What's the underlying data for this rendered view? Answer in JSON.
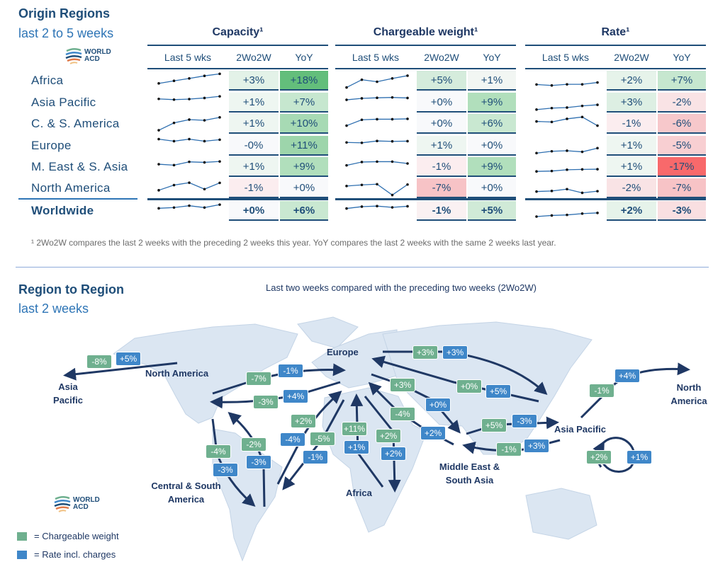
{
  "origin": {
    "title": "Origin Regions",
    "subtitle": "last 2 to 5 weeks",
    "logo_text": [
      "WORLD",
      "ACD"
    ],
    "regions": [
      "Africa",
      "Asia Pacific",
      "C. & S. America",
      "Europe",
      "M. East & S. Asia",
      "North America"
    ],
    "total_label": "Worldwide",
    "footnote": "¹ 2Wo2W compares the last 2 weeks with the preceding 2 weeks this year. YoY compares the last 2 weeks with the same 2 weeks last year."
  },
  "chart_data": {
    "type": "table",
    "columns": [
      "Last 5 wks",
      "2Wo2W",
      "YoY"
    ],
    "groups": [
      {
        "title": "Capacity¹",
        "sparklines": [
          [
            0.39,
            0.53,
            0.66,
            0.8,
            0.91
          ],
          [
            0.74,
            0.7,
            0.73,
            0.79,
            0.88
          ],
          [
            0.19,
            0.59,
            0.77,
            0.73,
            0.89
          ],
          [
            0.9,
            0.79,
            0.9,
            0.79,
            0.87
          ],
          [
            0.69,
            0.64,
            0.82,
            0.79,
            0.84
          ],
          [
            0.43,
            0.71,
            0.84,
            0.49,
            0.83
          ],
          [
            0.68,
            0.72,
            0.82,
            0.72,
            0.88
          ]
        ],
        "wo2w": [
          "+3%",
          "+1%",
          "+1%",
          "-0%",
          "+1%",
          "-1%",
          "+0%"
        ],
        "wo2w_colors": [
          "#e3f2e8",
          "#eef6f1",
          "#eef6f1",
          "#f8f9fb",
          "#eef6f1",
          "#fbedef",
          "#f8f9fb"
        ],
        "yoy": [
          "+18%",
          "+7%",
          "+10%",
          "+11%",
          "+9%",
          "+0%",
          "+6%"
        ],
        "yoy_colors": [
          "#63be7b",
          "#c6e7cf",
          "#a7dab4",
          "#9dd5ab",
          "#b1dfbc",
          "#f8f9fb",
          "#c9e8d1"
        ]
      },
      {
        "title": "Chargeable weight¹",
        "sparklines": [
          [
            0.17,
            0.59,
            0.48,
            0.66,
            0.81
          ],
          [
            0.69,
            0.77,
            0.8,
            0.82,
            0.79
          ],
          [
            0.44,
            0.76,
            0.79,
            0.79,
            0.81
          ],
          [
            0.72,
            0.7,
            0.8,
            0.78,
            0.79
          ],
          [
            0.63,
            0.81,
            0.83,
            0.83,
            0.73
          ],
          [
            0.66,
            0.72,
            0.76,
            0.17,
            0.74
          ],
          [
            0.67,
            0.77,
            0.8,
            0.73,
            0.79
          ]
        ],
        "wo2w": [
          "+5%",
          "+0%",
          "+0%",
          "+1%",
          "-1%",
          "-7%",
          "-1%"
        ],
        "wo2w_colors": [
          "#d5ecdc",
          "#f8f9fb",
          "#f8f9fb",
          "#eef6f1",
          "#fbedef",
          "#f7c3c6",
          "#faf1f2"
        ],
        "yoy": [
          "+1%",
          "+9%",
          "+6%",
          "+0%",
          "+9%",
          "+0%",
          "+5%"
        ],
        "yoy_colors": [
          "#f2f6f3",
          "#b1dfbc",
          "#c9e8d1",
          "#f8f9fb",
          "#b1dfbc",
          "#f8f9fb",
          "#d0ead7"
        ]
      },
      {
        "title": "Rate¹",
        "sparklines": [
          [
            0.33,
            0.28,
            0.34,
            0.34,
            0.44
          ],
          [
            0.16,
            0.24,
            0.27,
            0.36,
            0.42
          ],
          [
            0.67,
            0.64,
            0.81,
            0.91,
            0.44
          ],
          [
            0.14,
            0.24,
            0.27,
            0.21,
            0.41
          ],
          [
            0.3,
            0.32,
            0.39,
            0.41,
            0.42
          ],
          [
            0.36,
            0.39,
            0.49,
            0.29,
            0.38
          ],
          [
            0.23,
            0.29,
            0.32,
            0.39,
            0.43
          ]
        ],
        "wo2w": [
          "+2%",
          "+3%",
          "-1%",
          "+1%",
          "+1%",
          "-2%",
          "+2%"
        ],
        "wo2w_colors": [
          "#e6f3ea",
          "#ddefe3",
          "#fbedef",
          "#eef6f1",
          "#eef6f1",
          "#f9e3e5",
          "#e6f3ea"
        ],
        "yoy": [
          "+7%",
          "-2%",
          "-6%",
          "-5%",
          "-17%",
          "-7%",
          "-3%"
        ],
        "yoy_colors": [
          "#c6e7cf",
          "#f9e3e5",
          "#f7c8cb",
          "#f8cfd2",
          "#f8696b",
          "#f7c3c6",
          "#f9dfe1"
        ]
      }
    ]
  },
  "r2r": {
    "title": "Region to Region",
    "subtitle": "last 2 weeks",
    "caption": "Last two weeks compared with the preceding two weeks (2Wo2W)",
    "labels": {
      "north_america": "North America",
      "europe": "Europe",
      "asia_pacific_left": "Asia Pacific",
      "north_america_right": "North America",
      "csa": "Central & South America",
      "africa": "Africa",
      "mesa": "Middle East & South Asia",
      "asia_pacific": "Asia Pacific"
    },
    "badges": [
      "-8%",
      "+5%",
      "-7%",
      "-1%",
      "-3%",
      "+4%",
      "+2%",
      "-4%",
      "-5%",
      "-1%",
      "+11%",
      "+1%",
      "+2%",
      "+2%",
      "-4%",
      "-3%",
      "-2%",
      "-3%",
      "+3%",
      "+3%",
      "+3%",
      "+0%",
      "+5%",
      "+0%",
      "-4%",
      "+2%",
      "+5%",
      "-3%",
      "-1%",
      "+3%",
      "-1%",
      "+4%",
      "+2%",
      "+1%"
    ],
    "legend": {
      "green": "= Chargeable weight",
      "blue": "= Rate incl. charges"
    },
    "colors": {
      "chargeable": "#6fb08f",
      "rate": "#3f87c9"
    }
  }
}
